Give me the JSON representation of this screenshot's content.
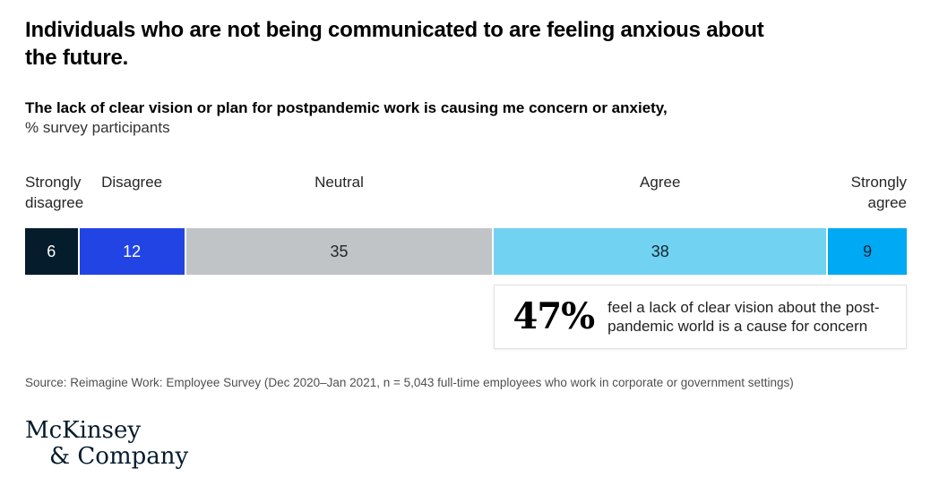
{
  "title_lines": [
    "Individuals who are not being communicated to are feeling anxious about",
    "the future."
  ],
  "subtitle": "The lack of clear vision or plan for postpandemic work is causing me concern or anxiety,",
  "unit_label": "% survey participants",
  "chart_data": {
    "type": "bar",
    "variant": "horizontal-stacked",
    "title": "The lack of clear vision or plan for postpandemic work is causing me concern or anxiety, % survey participants",
    "categories": [
      "Strongly disagree",
      "Disagree",
      "Neutral",
      "Agree",
      "Strongly agree"
    ],
    "values": [
      6,
      12,
      35,
      38,
      9
    ],
    "xlim": [
      0,
      100
    ],
    "grid": false,
    "legend": "none",
    "value_labels": "inside-center",
    "segment_colors": [
      "#051c2c",
      "#2344e4",
      "#c1c4c7",
      "#71d2f1",
      "#00a9f4"
    ],
    "value_label_colors": [
      "#ffffff",
      "#ffffff",
      "#262626",
      "#12262f",
      "#12262f"
    ]
  },
  "callout": {
    "stat": "47%",
    "text": "feel a lack of clear vision about the post-pandemic world is a cause for concern"
  },
  "source": "Source: Reimagine Work: Employee Survey (Dec 2020–Jan 2021, n = 5,043 full-time employees who work in corporate or government settings)",
  "logo": {
    "line1": "McKinsey",
    "line2": "& Company"
  }
}
